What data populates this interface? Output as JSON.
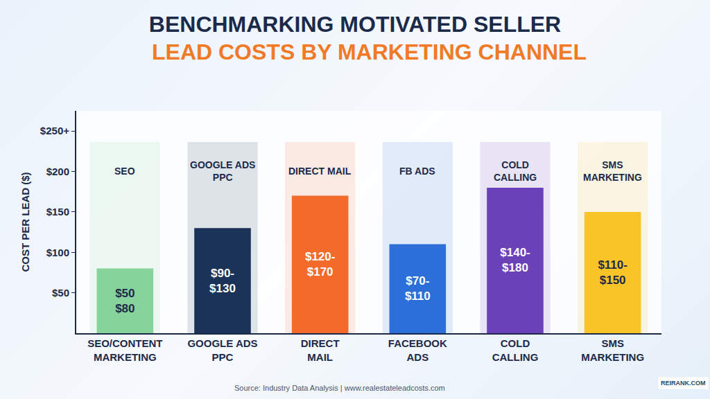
{
  "chart_data": {
    "type": "bar",
    "title": "BENCHMARKING MOTIVATED SELLER",
    "subtitle": "LEAD COSTS BY MARKETING CHANNEL",
    "y_label": "COST PER LEAD ($)",
    "categories": [
      "SEO/CONTENT MARKETING",
      "GOOGLE ADS PPC",
      "DIRECT MAIL",
      "FACEBOOK ADS",
      "COLD CALLING",
      "SMS MARKETING"
    ],
    "values": [
      80,
      130,
      170,
      110,
      180,
      150
    ],
    "value_labels": [
      "$50\n$80",
      "$90-\n$130",
      "$120-\n$170",
      "$70-\n$110",
      "$140-\n$180",
      "$110-\n$150"
    ],
    "colors": [
      "#86d49c",
      "#1b3358",
      "#f26b2b",
      "#2c6fd8",
      "#6b41b8",
      "#f8c428"
    ],
    "annotations": [
      "SEO",
      "GOOGLE ADS PPC",
      "DIRECT MAIL",
      "FB ADS",
      "COLD CALLING",
      "SMS MARKETING"
    ],
    "source": "Source: Industry Data Analysis | www.realestateleadcosts.com",
    "logo": "REIRANK.COM",
    "ylim": [
      0,
      275
    ],
    "yticks": [
      {
        "value": 50,
        "label": "$50"
      },
      {
        "value": 100,
        "label": "$100"
      },
      {
        "value": 150,
        "label": "$150"
      },
      {
        "value": 200,
        "label": "$200"
      },
      {
        "value": 250,
        "label": "$250+"
      }
    ],
    "grid": false,
    "data_labels": true
  }
}
